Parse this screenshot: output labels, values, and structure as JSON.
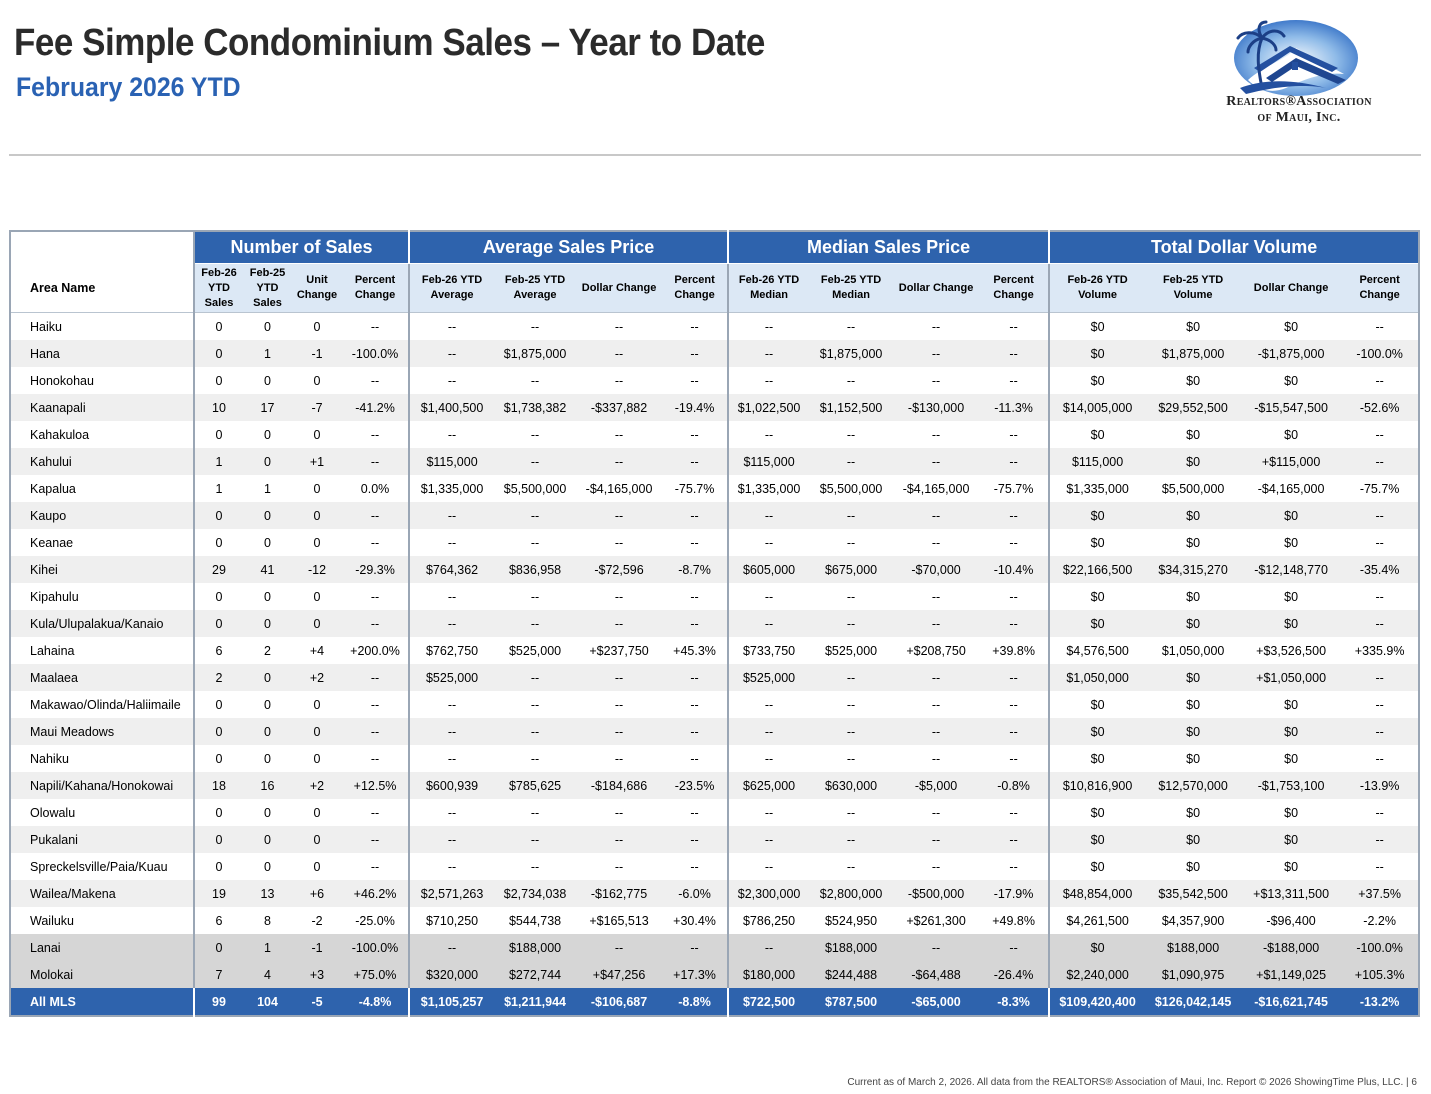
{
  "header": {
    "title": "Fee Simple Condominium Sales – Year to Date",
    "subtitle": "February 2026 YTD"
  },
  "logo": {
    "line1": "Realtors®Association",
    "line2": "of Maui, Inc.",
    "colors": {
      "sky": "#3d7fd1",
      "roof": "#2450a0",
      "palm": "#1c3f86"
    }
  },
  "groups": [
    "Number of Sales",
    "Average Sales Price",
    "Median Sales Price",
    "Total Dollar Volume"
  ],
  "columns": {
    "area": "Area Name",
    "sales": [
      "Feb-26 YTD Sales",
      "Feb-25 YTD Sales",
      "Unit Change",
      "Percent Change"
    ],
    "avg": [
      "Feb-26 YTD Average",
      "Feb-25 YTD Average",
      "Dollar Change",
      "Percent Change"
    ],
    "median": [
      "Feb-26 YTD Median",
      "Feb-25 YTD Median",
      "Dollar Change",
      "Percent Change"
    ],
    "volume": [
      "Feb-26 YTD Volume",
      "Feb-25 YTD Volume",
      "Dollar Change",
      "Percent Change"
    ]
  },
  "rows": [
    {
      "area": "Haiku",
      "v": [
        "0",
        "0",
        "0",
        "--",
        "--",
        "--",
        "--",
        "--",
        "--",
        "--",
        "--",
        "--",
        "$0",
        "$0",
        "$0",
        "--"
      ]
    },
    {
      "area": "Hana",
      "v": [
        "0",
        "1",
        "-1",
        "-100.0%",
        "--",
        "$1,875,000",
        "--",
        "--",
        "--",
        "$1,875,000",
        "--",
        "--",
        "$0",
        "$1,875,000",
        "-$1,875,000",
        "-100.0%"
      ]
    },
    {
      "area": "Honokohau",
      "v": [
        "0",
        "0",
        "0",
        "--",
        "--",
        "--",
        "--",
        "--",
        "--",
        "--",
        "--",
        "--",
        "$0",
        "$0",
        "$0",
        "--"
      ]
    },
    {
      "area": "Kaanapali",
      "v": [
        "10",
        "17",
        "-7",
        "-41.2%",
        "$1,400,500",
        "$1,738,382",
        "-$337,882",
        "-19.4%",
        "$1,022,500",
        "$1,152,500",
        "-$130,000",
        "-11.3%",
        "$14,005,000",
        "$29,552,500",
        "-$15,547,500",
        "-52.6%"
      ]
    },
    {
      "area": "Kahakuloa",
      "v": [
        "0",
        "0",
        "0",
        "--",
        "--",
        "--",
        "--",
        "--",
        "--",
        "--",
        "--",
        "--",
        "$0",
        "$0",
        "$0",
        "--"
      ]
    },
    {
      "area": "Kahului",
      "v": [
        "1",
        "0",
        "+1",
        "--",
        "$115,000",
        "--",
        "--",
        "--",
        "$115,000",
        "--",
        "--",
        "--",
        "$115,000",
        "$0",
        "+$115,000",
        "--"
      ]
    },
    {
      "area": "Kapalua",
      "v": [
        "1",
        "1",
        "0",
        "0.0%",
        "$1,335,000",
        "$5,500,000",
        "-$4,165,000",
        "-75.7%",
        "$1,335,000",
        "$5,500,000",
        "-$4,165,000",
        "-75.7%",
        "$1,335,000",
        "$5,500,000",
        "-$4,165,000",
        "-75.7%"
      ]
    },
    {
      "area": "Kaupo",
      "v": [
        "0",
        "0",
        "0",
        "--",
        "--",
        "--",
        "--",
        "--",
        "--",
        "--",
        "--",
        "--",
        "$0",
        "$0",
        "$0",
        "--"
      ]
    },
    {
      "area": "Keanae",
      "v": [
        "0",
        "0",
        "0",
        "--",
        "--",
        "--",
        "--",
        "--",
        "--",
        "--",
        "--",
        "--",
        "$0",
        "$0",
        "$0",
        "--"
      ]
    },
    {
      "area": "Kihei",
      "v": [
        "29",
        "41",
        "-12",
        "-29.3%",
        "$764,362",
        "$836,958",
        "-$72,596",
        "-8.7%",
        "$605,000",
        "$675,000",
        "-$70,000",
        "-10.4%",
        "$22,166,500",
        "$34,315,270",
        "-$12,148,770",
        "-35.4%"
      ]
    },
    {
      "area": "Kipahulu",
      "v": [
        "0",
        "0",
        "0",
        "--",
        "--",
        "--",
        "--",
        "--",
        "--",
        "--",
        "--",
        "--",
        "$0",
        "$0",
        "$0",
        "--"
      ]
    },
    {
      "area": "Kula/Ulupalakua/Kanaio",
      "v": [
        "0",
        "0",
        "0",
        "--",
        "--",
        "--",
        "--",
        "--",
        "--",
        "--",
        "--",
        "--",
        "$0",
        "$0",
        "$0",
        "--"
      ]
    },
    {
      "area": "Lahaina",
      "v": [
        "6",
        "2",
        "+4",
        "+200.0%",
        "$762,750",
        "$525,000",
        "+$237,750",
        "+45.3%",
        "$733,750",
        "$525,000",
        "+$208,750",
        "+39.8%",
        "$4,576,500",
        "$1,050,000",
        "+$3,526,500",
        "+335.9%"
      ]
    },
    {
      "area": "Maalaea",
      "v": [
        "2",
        "0",
        "+2",
        "--",
        "$525,000",
        "--",
        "--",
        "--",
        "$525,000",
        "--",
        "--",
        "--",
        "$1,050,000",
        "$0",
        "+$1,050,000",
        "--"
      ]
    },
    {
      "area": "Makawao/Olinda/Haliimaile",
      "v": [
        "0",
        "0",
        "0",
        "--",
        "--",
        "--",
        "--",
        "--",
        "--",
        "--",
        "--",
        "--",
        "$0",
        "$0",
        "$0",
        "--"
      ]
    },
    {
      "area": "Maui Meadows",
      "v": [
        "0",
        "0",
        "0",
        "--",
        "--",
        "--",
        "--",
        "--",
        "--",
        "--",
        "--",
        "--",
        "$0",
        "$0",
        "$0",
        "--"
      ]
    },
    {
      "area": "Nahiku",
      "v": [
        "0",
        "0",
        "0",
        "--",
        "--",
        "--",
        "--",
        "--",
        "--",
        "--",
        "--",
        "--",
        "$0",
        "$0",
        "$0",
        "--"
      ]
    },
    {
      "area": "Napili/Kahana/Honokowai",
      "v": [
        "18",
        "16",
        "+2",
        "+12.5%",
        "$600,939",
        "$785,625",
        "-$184,686",
        "-23.5%",
        "$625,000",
        "$630,000",
        "-$5,000",
        "-0.8%",
        "$10,816,900",
        "$12,570,000",
        "-$1,753,100",
        "-13.9%"
      ]
    },
    {
      "area": "Olowalu",
      "v": [
        "0",
        "0",
        "0",
        "--",
        "--",
        "--",
        "--",
        "--",
        "--",
        "--",
        "--",
        "--",
        "$0",
        "$0",
        "$0",
        "--"
      ]
    },
    {
      "area": "Pukalani",
      "v": [
        "0",
        "0",
        "0",
        "--",
        "--",
        "--",
        "--",
        "--",
        "--",
        "--",
        "--",
        "--",
        "$0",
        "$0",
        "$0",
        "--"
      ]
    },
    {
      "area": "Spreckelsville/Paia/Kuau",
      "v": [
        "0",
        "0",
        "0",
        "--",
        "--",
        "--",
        "--",
        "--",
        "--",
        "--",
        "--",
        "--",
        "$0",
        "$0",
        "$0",
        "--"
      ]
    },
    {
      "area": "Wailea/Makena",
      "v": [
        "19",
        "13",
        "+6",
        "+46.2%",
        "$2,571,263",
        "$2,734,038",
        "-$162,775",
        "-6.0%",
        "$2,300,000",
        "$2,800,000",
        "-$500,000",
        "-17.9%",
        "$48,854,000",
        "$35,542,500",
        "+$13,311,500",
        "+37.5%"
      ]
    },
    {
      "area": "Wailuku",
      "v": [
        "6",
        "8",
        "-2",
        "-25.0%",
        "$710,250",
        "$544,738",
        "+$165,513",
        "+30.4%",
        "$786,250",
        "$524,950",
        "+$261,300",
        "+49.8%",
        "$4,261,500",
        "$4,357,900",
        "-$96,400",
        "-2.2%"
      ]
    },
    {
      "area": "Lanai",
      "style": "gray",
      "v": [
        "0",
        "1",
        "-1",
        "-100.0%",
        "--",
        "$188,000",
        "--",
        "--",
        "--",
        "$188,000",
        "--",
        "--",
        "$0",
        "$188,000",
        "-$188,000",
        "-100.0%"
      ]
    },
    {
      "area": "Molokai",
      "style": "gray",
      "v": [
        "7",
        "4",
        "+3",
        "+75.0%",
        "$320,000",
        "$272,744",
        "+$47,256",
        "+17.3%",
        "$180,000",
        "$244,488",
        "-$64,488",
        "-26.4%",
        "$2,240,000",
        "$1,090,975",
        "+$1,149,025",
        "+105.3%"
      ]
    },
    {
      "area": "All MLS",
      "style": "total",
      "v": [
        "99",
        "104",
        "-5",
        "-4.8%",
        "$1,105,257",
        "$1,211,944",
        "-$106,687",
        "-8.8%",
        "$722,500",
        "$787,500",
        "-$65,000",
        "-8.3%",
        "$109,420,400",
        "$126,042,145",
        "-$16,621,745",
        "-13.2%"
      ]
    }
  ],
  "footer": "Current as of March 2, 2026. All data from the REALTORS® Association of Maui, Inc. Report © 2026 ShowingTime Plus, LLC.  |  6"
}
